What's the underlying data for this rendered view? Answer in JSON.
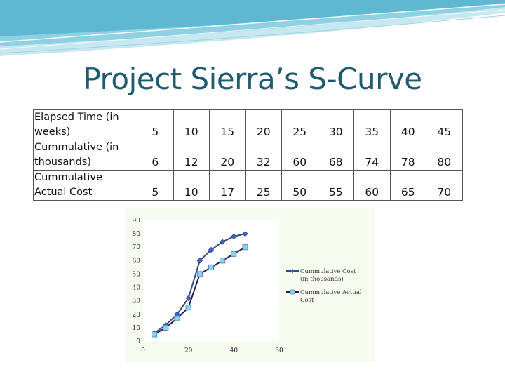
{
  "slide": {
    "title": "Project Sierra’s S-Curve"
  },
  "table": {
    "rows": [
      {
        "label": "Elapsed Time (in weeks)",
        "values": [
          "5",
          "10",
          "15",
          "20",
          "25",
          "30",
          "35",
          "40",
          "45"
        ]
      },
      {
        "label": "Cummulative (in thousands)",
        "values": [
          "6",
          "12",
          "20",
          "32",
          "60",
          "68",
          "74",
          "78",
          "80"
        ]
      },
      {
        "label": "Cummulative Actual Cost",
        "values": [
          "5",
          "10",
          "17",
          "25",
          "50",
          "55",
          "60",
          "65",
          "70"
        ]
      }
    ]
  },
  "chart_data": {
    "type": "line",
    "xlim": [
      0,
      60
    ],
    "ylim": [
      0,
      90
    ],
    "xticks": [
      0,
      20,
      40,
      60
    ],
    "yticks": [
      0,
      10,
      20,
      30,
      40,
      50,
      60,
      70,
      80,
      90
    ],
    "grid": false,
    "legend": "right",
    "series": [
      {
        "name": "Cummulative Cost (in thousands)",
        "x": [
          5,
          10,
          15,
          20,
          25,
          30,
          35,
          40,
          45
        ],
        "y": [
          6,
          12,
          20,
          32,
          60,
          68,
          74,
          78,
          80
        ],
        "color": "#2f4a8a",
        "marker": "diamond",
        "marker_color": "#3f66c4"
      },
      {
        "name": "Cummulative Actual Cost",
        "x": [
          5,
          10,
          15,
          20,
          25,
          30,
          35,
          40,
          45
        ],
        "y": [
          5,
          10,
          17,
          25,
          50,
          55,
          60,
          65,
          70
        ],
        "color": "#1e1e50",
        "marker": "square",
        "marker_color": "#8fd0ec"
      }
    ]
  },
  "colors": {
    "title": "#1e5b6e",
    "plot_background": "#f6fbef",
    "banner": "#6fc3d8"
  }
}
